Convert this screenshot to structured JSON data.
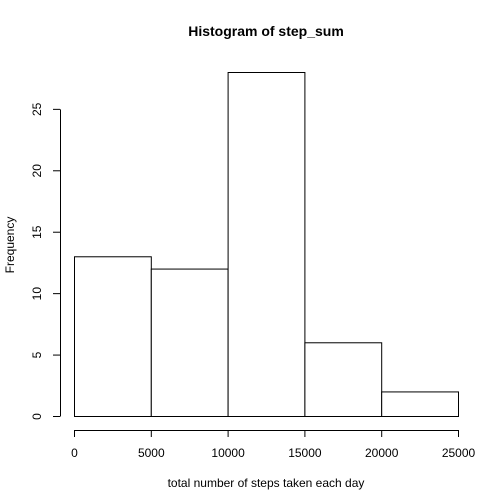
{
  "chart_data": {
    "type": "bar",
    "title": "Histogram of step_sum",
    "xlabel": "total number of steps taken each day",
    "ylabel": "Frequency",
    "bins": [
      {
        "from": 0,
        "to": 5000,
        "count": 13
      },
      {
        "from": 5000,
        "to": 10000,
        "count": 12
      },
      {
        "from": 10000,
        "to": 15000,
        "count": 28
      },
      {
        "from": 15000,
        "to": 20000,
        "count": 6
      },
      {
        "from": 20000,
        "to": 25000,
        "count": 2
      }
    ],
    "xlim": [
      0,
      25000
    ],
    "ylim": [
      0,
      28
    ],
    "x_ticks": [
      0,
      5000,
      10000,
      15000,
      20000,
      25000
    ],
    "y_ticks": [
      0,
      5,
      10,
      15,
      20,
      25
    ],
    "grid": false,
    "bar_fill": "#ffffff",
    "bar_stroke": "#000000"
  }
}
